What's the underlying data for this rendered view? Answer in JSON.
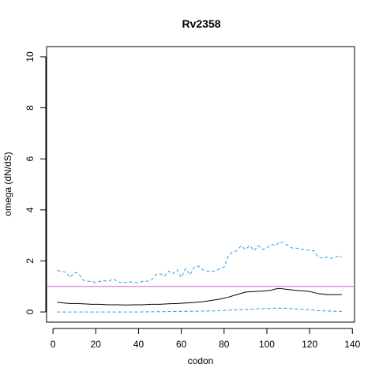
{
  "chart_data": {
    "type": "line",
    "title": "Rv2358",
    "xlabel": "codon",
    "ylabel": "omega (dN/dS)",
    "xlim": [
      -3,
      141
    ],
    "ylim": [
      -0.4,
      10.4
    ],
    "xticks": [
      0,
      20,
      40,
      60,
      80,
      100,
      120,
      140
    ],
    "yticks": [
      0,
      2,
      4,
      6,
      8,
      10
    ],
    "grid": false,
    "reference_line": {
      "y": 1,
      "color": "#cc66cc"
    },
    "series": [
      {
        "role": "estimate",
        "color": "#000000",
        "dash": "solid",
        "points": [
          [
            2,
            0.38
          ],
          [
            5,
            0.35
          ],
          [
            8,
            0.33
          ],
          [
            10,
            0.33
          ],
          [
            14,
            0.32
          ],
          [
            18,
            0.3
          ],
          [
            22,
            0.3
          ],
          [
            26,
            0.28
          ],
          [
            30,
            0.28
          ],
          [
            34,
            0.27
          ],
          [
            38,
            0.28
          ],
          [
            42,
            0.28
          ],
          [
            46,
            0.3
          ],
          [
            50,
            0.3
          ],
          [
            54,
            0.32
          ],
          [
            58,
            0.33
          ],
          [
            62,
            0.35
          ],
          [
            66,
            0.37
          ],
          [
            70,
            0.4
          ],
          [
            74,
            0.45
          ],
          [
            78,
            0.5
          ],
          [
            82,
            0.58
          ],
          [
            86,
            0.68
          ],
          [
            90,
            0.78
          ],
          [
            94,
            0.8
          ],
          [
            98,
            0.82
          ],
          [
            102,
            0.85
          ],
          [
            104,
            0.9
          ],
          [
            106,
            0.92
          ],
          [
            108,
            0.9
          ],
          [
            110,
            0.88
          ],
          [
            114,
            0.84
          ],
          [
            118,
            0.82
          ],
          [
            120,
            0.8
          ],
          [
            124,
            0.72
          ],
          [
            128,
            0.68
          ],
          [
            132,
            0.68
          ],
          [
            135,
            0.68
          ]
        ]
      },
      {
        "role": "upper",
        "color": "#2b9bd8",
        "dash": "dashed",
        "points": [
          [
            2,
            1.62
          ],
          [
            4,
            1.6
          ],
          [
            6,
            1.55
          ],
          [
            8,
            1.35
          ],
          [
            10,
            1.55
          ],
          [
            12,
            1.5
          ],
          [
            14,
            1.25
          ],
          [
            16,
            1.2
          ],
          [
            18,
            1.2
          ],
          [
            20,
            1.15
          ],
          [
            22,
            1.2
          ],
          [
            24,
            1.22
          ],
          [
            26,
            1.2
          ],
          [
            28,
            1.3
          ],
          [
            30,
            1.2
          ],
          [
            32,
            1.15
          ],
          [
            34,
            1.15
          ],
          [
            36,
            1.18
          ],
          [
            38,
            1.15
          ],
          [
            40,
            1.15
          ],
          [
            42,
            1.2
          ],
          [
            44,
            1.2
          ],
          [
            46,
            1.25
          ],
          [
            48,
            1.45
          ],
          [
            50,
            1.5
          ],
          [
            52,
            1.4
          ],
          [
            54,
            1.6
          ],
          [
            56,
            1.5
          ],
          [
            58,
            1.65
          ],
          [
            60,
            1.35
          ],
          [
            62,
            1.7
          ],
          [
            64,
            1.45
          ],
          [
            66,
            1.75
          ],
          [
            68,
            1.8
          ],
          [
            70,
            1.65
          ],
          [
            72,
            1.6
          ],
          [
            74,
            1.6
          ],
          [
            76,
            1.6
          ],
          [
            78,
            1.7
          ],
          [
            80,
            1.75
          ],
          [
            82,
            2.2
          ],
          [
            84,
            2.35
          ],
          [
            86,
            2.4
          ],
          [
            88,
            2.6
          ],
          [
            90,
            2.45
          ],
          [
            92,
            2.6
          ],
          [
            94,
            2.4
          ],
          [
            96,
            2.6
          ],
          [
            98,
            2.45
          ],
          [
            100,
            2.5
          ],
          [
            102,
            2.65
          ],
          [
            104,
            2.6
          ],
          [
            106,
            2.75
          ],
          [
            108,
            2.7
          ],
          [
            110,
            2.6
          ],
          [
            112,
            2.5
          ],
          [
            114,
            2.5
          ],
          [
            116,
            2.45
          ],
          [
            118,
            2.45
          ],
          [
            120,
            2.4
          ],
          [
            122,
            2.4
          ],
          [
            124,
            2.15
          ],
          [
            126,
            2.1
          ],
          [
            128,
            2.15
          ],
          [
            130,
            2.1
          ],
          [
            132,
            2.15
          ],
          [
            134,
            2.2
          ],
          [
            135,
            2.15
          ]
        ]
      },
      {
        "role": "lower",
        "color": "#2b9bd8",
        "dash": "dashed",
        "points": [
          [
            2,
            0.0
          ],
          [
            40,
            0.0
          ],
          [
            60,
            0.02
          ],
          [
            75,
            0.04
          ],
          [
            85,
            0.08
          ],
          [
            95,
            0.12
          ],
          [
            105,
            0.15
          ],
          [
            110,
            0.14
          ],
          [
            118,
            0.1
          ],
          [
            125,
            0.05
          ],
          [
            130,
            0.03
          ],
          [
            135,
            0.02
          ]
        ]
      }
    ]
  }
}
